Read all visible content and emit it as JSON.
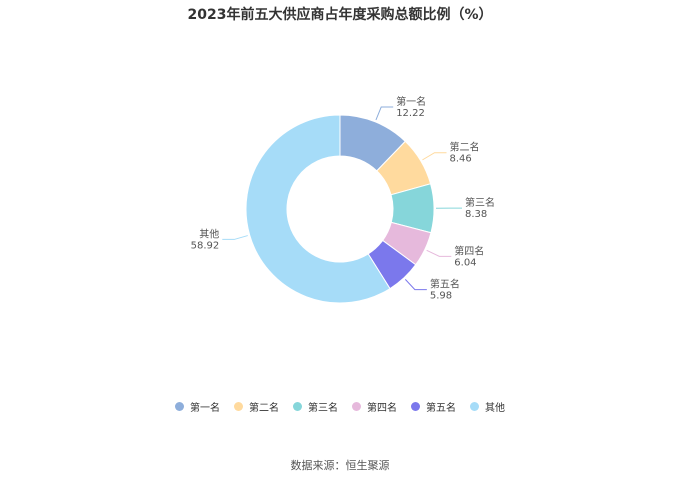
{
  "chart_data": {
    "type": "pie",
    "title": "2023年前五大供应商占年度采购总额比例（%）",
    "categories": [
      "第一名",
      "第二名",
      "第三名",
      "第四名",
      "第五名",
      "其他"
    ],
    "values": [
      12.22,
      8.46,
      8.38,
      6.04,
      5.98,
      58.92
    ],
    "value_labels": [
      "12.22",
      "8.46",
      "8.38",
      "6.04",
      "5.98",
      "58.92"
    ],
    "colors": [
      "#8EAEDB",
      "#FFDA9E",
      "#86D6DA",
      "#E6B9DC",
      "#7B78EC",
      "#A6DCF8"
    ],
    "donut": true,
    "legend_position": "bottom"
  },
  "footer": {
    "source": "数据来源：恒生聚源"
  }
}
